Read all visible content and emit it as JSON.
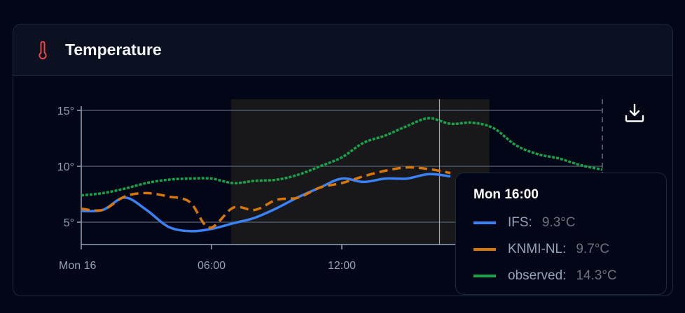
{
  "card": {
    "title": "Temperature",
    "icon": "thermometer-icon",
    "icon_color": "#ef4444"
  },
  "toolbar": {
    "download_icon": "download-icon"
  },
  "tooltip": {
    "title": "Mon 16:00",
    "rows": [
      {
        "label": "IFS:",
        "value": "9.3°C",
        "color": "#3b82f6"
      },
      {
        "label": "KNMI-NL:",
        "value": "9.7°C",
        "color": "#d97706"
      },
      {
        "label": "observed:",
        "value": "14.3°C",
        "color": "#16a34a"
      }
    ]
  },
  "chart_data": {
    "type": "line",
    "title": "",
    "xlabel": "",
    "ylabel": "",
    "x_unit": "hours since Mon 16 00:00",
    "xlim": [
      0,
      24
    ],
    "ylim": [
      3,
      16
    ],
    "x_ticks": [
      {
        "x": 0,
        "label": "Mon 16"
      },
      {
        "x": 6,
        "label": "06:00"
      },
      {
        "x": 12,
        "label": "12:00"
      }
    ],
    "y_ticks": [
      {
        "y": 5,
        "label": "5°"
      },
      {
        "y": 10,
        "label": "10°"
      },
      {
        "y": 15,
        "label": "15°"
      }
    ],
    "grid": true,
    "shaded_band": [
      6.9,
      18.8
    ],
    "cursor_x": 16.5,
    "now_marker_x": 24,
    "series": [
      {
        "name": "IFS",
        "color": "#3b82f6",
        "style": "solid",
        "x": [
          0,
          1,
          2,
          3,
          4,
          5,
          6,
          7,
          8,
          9,
          10,
          11,
          12,
          13,
          14,
          15,
          16,
          17
        ],
        "y": [
          6.0,
          6.1,
          7.2,
          6.1,
          4.6,
          4.2,
          4.4,
          4.9,
          5.4,
          6.25,
          7.25,
          8.1,
          8.9,
          8.6,
          8.9,
          8.9,
          9.3,
          9.1
        ]
      },
      {
        "name": "KNMI-NL",
        "color": "#d97706",
        "style": "dashed",
        "x": [
          0,
          1,
          2,
          3,
          4,
          5,
          5.9,
          7,
          8,
          9,
          10,
          11,
          12,
          13,
          14,
          15,
          16,
          17
        ],
        "y": [
          6.2,
          6.1,
          7.3,
          7.6,
          7.3,
          6.8,
          4.5,
          6.3,
          6.1,
          7.0,
          7.2,
          8.1,
          8.5,
          9.1,
          9.6,
          9.9,
          9.75,
          9.4
        ]
      },
      {
        "name": "observed",
        "color": "#16a34a",
        "style": "dotted",
        "x": [
          0,
          1,
          2,
          3,
          4,
          5,
          6,
          7,
          8,
          9,
          10,
          11,
          12,
          13,
          14,
          15,
          16,
          17,
          18,
          19,
          20,
          21,
          22,
          23,
          24
        ],
        "y": [
          7.4,
          7.6,
          8.0,
          8.5,
          8.8,
          8.9,
          8.9,
          8.5,
          8.7,
          8.8,
          9.25,
          10.0,
          10.8,
          12.1,
          12.75,
          13.6,
          14.3,
          13.8,
          13.9,
          13.4,
          11.9,
          11.1,
          10.7,
          10.1,
          9.7
        ]
      }
    ]
  }
}
